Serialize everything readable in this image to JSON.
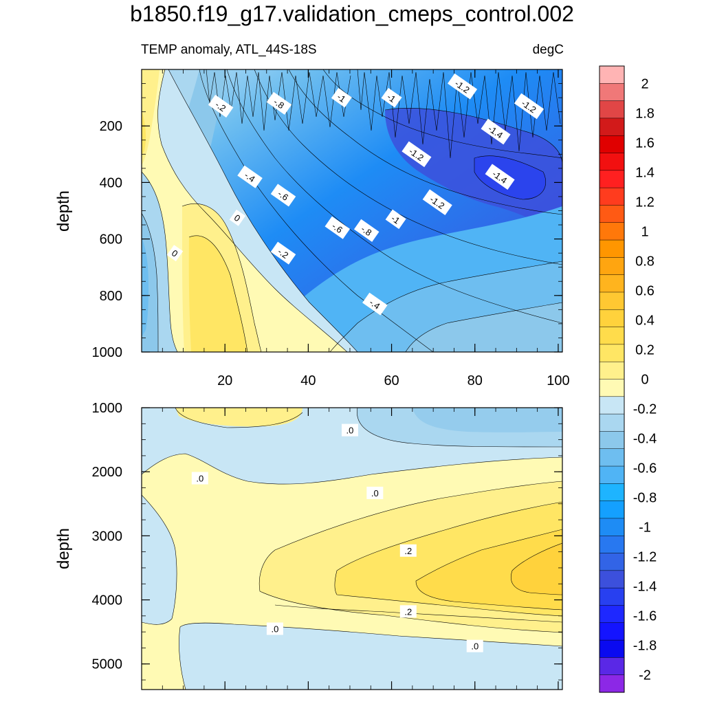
{
  "chart_data": {
    "type": "heatmap",
    "title": "b1850.f19_g17.validation_cmeps_control.002",
    "subtitle_left": "TEMP anomaly, ATL_44S-18S",
    "subtitle_right": "degC",
    "panels": [
      {
        "name": "upper",
        "ylabel": "depth",
        "x_range": [
          0,
          101
        ],
        "y_range": [
          0,
          1000
        ],
        "x_ticks": [
          20,
          40,
          60,
          80,
          100
        ],
        "y_ticks": [
          200,
          400,
          600,
          800,
          1000
        ],
        "contour_labels": [
          {
            "text": "-.2",
            "x": 19,
            "y": 130
          },
          {
            "text": "-.8",
            "x": 33,
            "y": 120
          },
          {
            "text": "-1",
            "x": 48,
            "y": 100
          },
          {
            "text": "-1",
            "x": 60,
            "y": 100
          },
          {
            "text": "-1.2",
            "x": 77,
            "y": 60
          },
          {
            "text": "-1.2",
            "x": 93,
            "y": 130
          },
          {
            "text": "-1.4",
            "x": 85,
            "y": 220
          },
          {
            "text": "-1.2",
            "x": 66,
            "y": 300
          },
          {
            "text": "-1.4",
            "x": 86,
            "y": 380
          },
          {
            "text": "-.4",
            "x": 26,
            "y": 380
          },
          {
            "text": "-.6",
            "x": 34,
            "y": 445
          },
          {
            "text": "-1.2",
            "x": 71,
            "y": 470
          },
          {
            "text": "-1",
            "x": 61,
            "y": 530
          },
          {
            "text": "0",
            "x": 23,
            "y": 525
          },
          {
            "text": "-.6",
            "x": 47,
            "y": 560
          },
          {
            "text": "-.8",
            "x": 54,
            "y": 570
          },
          {
            "text": "0",
            "x": 8,
            "y": 650
          },
          {
            "text": "-.2",
            "x": 34,
            "y": 650
          },
          {
            "text": "-.4",
            "x": 56,
            "y": 830
          }
        ]
      },
      {
        "name": "lower",
        "ylabel": "depth",
        "x_range": [
          0,
          101
        ],
        "y_range": [
          1000,
          5400
        ],
        "x_ticks": [],
        "y_ticks": [
          1000,
          2000,
          3000,
          4000,
          5000
        ],
        "contour_labels": [
          {
            "text": ".0",
            "x": 50,
            "y": 1350
          },
          {
            "text": ".0",
            "x": 14,
            "y": 2100
          },
          {
            "text": ".0",
            "x": 56,
            "y": 2330
          },
          {
            "text": ".2",
            "x": 64,
            "y": 3230
          },
          {
            "text": ".2",
            "x": 64,
            "y": 4180
          },
          {
            "text": ".0",
            "x": 32,
            "y": 4450
          },
          {
            "text": ".0",
            "x": 80,
            "y": 4720
          }
        ]
      }
    ],
    "colorbar": {
      "labels": [
        "2",
        "1.8",
        "1.6",
        "1.4",
        "1.2",
        "1",
        "0.8",
        "0.6",
        "0.4",
        "0.2",
        "0",
        "-0.2",
        "-0.4",
        "-0.6",
        "-0.8",
        "-1",
        "-1.2",
        "-1.4",
        "-1.6",
        "-1.8",
        "-2"
      ],
      "colors": [
        "#FFB4B4",
        "#F07878",
        "#E14646",
        "#D21A1A",
        "#E00000",
        "#F21010",
        "#FF2020",
        "#FF3C1E",
        "#FF5A14",
        "#FF780A",
        "#FF9600",
        "#FFA510",
        "#FFB41E",
        "#FFC832",
        "#FFD23C",
        "#FFDC4B",
        "#FFE664",
        "#FFF08C",
        "#FFFAB4",
        "#C8E6F5",
        "#AAD7F0",
        "#8CC8EB",
        "#6EBEF0",
        "#50B4F5",
        "#1EB4FF",
        "#14A0FF",
        "#1E8CF5",
        "#2878F0",
        "#3264E6",
        "#3C50DC",
        "#2840F0",
        "#1E28FF",
        "#1414FF",
        "#0A0AF0",
        "#5A28E6",
        "#8C28E6"
      ]
    }
  }
}
